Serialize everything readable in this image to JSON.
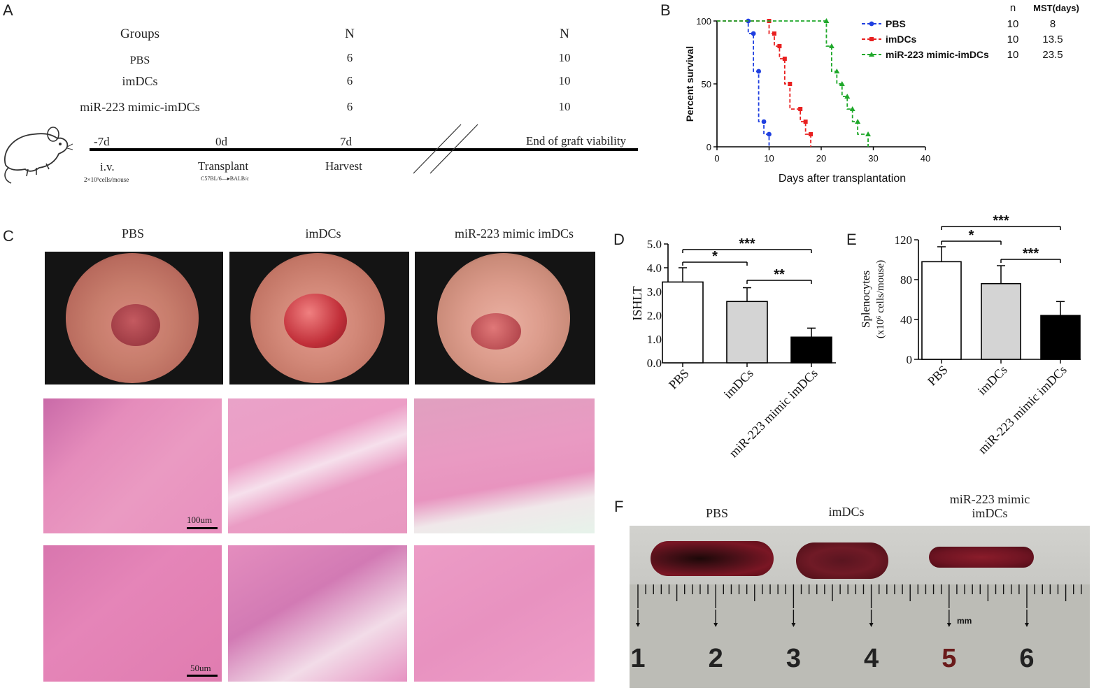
{
  "panel_labels": {
    "a": "A",
    "b": "B",
    "c": "C",
    "d": "D",
    "e": "E",
    "f": "F"
  },
  "panel_a": {
    "headers": [
      "Groups",
      "N",
      "N"
    ],
    "rows": [
      {
        "group": "PBS",
        "n1": "6",
        "n2": "10"
      },
      {
        "group": "imDCs",
        "n1": "6",
        "n2": "10"
      },
      {
        "group": "miR-223 mimic-imDCs",
        "n1": "6",
        "n2": "10"
      }
    ],
    "timeline": {
      "points": [
        "-7d",
        "0d",
        "7d",
        "End of graft viability"
      ],
      "events": [
        "i.v.",
        "Transplant",
        "Harvest"
      ],
      "iv_note": "2×10⁵cells/mouse",
      "transplant_note_from": "C57BL/6",
      "transplant_note_to": "BALB/c"
    },
    "icons": [
      "mouse-icon"
    ]
  },
  "panel_c": {
    "column_titles": [
      "PBS",
      "imDCs",
      "miR-223 mimic imDCs"
    ],
    "scale_bar_100": "100um",
    "scale_bar_50": "50um"
  },
  "panel_f": {
    "labels": [
      "PBS",
      "imDCs",
      "miR-223 mimic",
      "imDCs"
    ],
    "ruler_numbers": [
      "1",
      "2",
      "3",
      "4",
      "5",
      "6"
    ],
    "ruler_unit": "mm"
  },
  "chart_data": [
    {
      "id": "B",
      "type": "line",
      "ylabel": "Percent survival",
      "xlabel": "Days after transplantation",
      "xlim": [
        0,
        40
      ],
      "ylim": [
        0,
        100
      ],
      "x_ticks": [
        "0",
        "10",
        "20",
        "30",
        "40"
      ],
      "y_ticks": [
        "0",
        "50",
        "100"
      ],
      "step": true,
      "legend_position": "top-right",
      "legend_col_headers": [
        "n",
        "MST(days)"
      ],
      "series": [
        {
          "name": "PBS",
          "color": "#1f3fe0",
          "n": "10",
          "mst": "8",
          "x": [
            0,
            6,
            7,
            8,
            9,
            10
          ],
          "y": [
            100,
            90,
            60,
            20,
            10,
            0
          ]
        },
        {
          "name": "imDCs",
          "color": "#e82020",
          "n": "10",
          "mst": "13.5",
          "x": [
            0,
            10,
            11,
            12,
            13,
            14,
            16,
            17,
            18
          ],
          "y": [
            100,
            90,
            80,
            70,
            50,
            30,
            20,
            10,
            0
          ]
        },
        {
          "name": "miR-223 mimic-imDCs",
          "color": "#1fa82a",
          "n": "10",
          "mst": "23.5",
          "x": [
            0,
            21,
            22,
            23,
            24,
            25,
            26,
            27,
            29
          ],
          "y": [
            100,
            80,
            60,
            50,
            40,
            30,
            20,
            10,
            0
          ]
        }
      ]
    },
    {
      "id": "D",
      "type": "bar",
      "ylabel": "ISHLT",
      "categories": [
        "PBS",
        "imDCs",
        "miR-223 mimic imDCs"
      ],
      "values": [
        3.4,
        2.58,
        1.08
      ],
      "errors": [
        0.6,
        0.58,
        0.38
      ],
      "fills": [
        "#ffffff",
        "#d4d4d4",
        "#000000"
      ],
      "ylim": [
        0,
        5
      ],
      "y_ticks": [
        "0.0",
        "1.0",
        "2.0",
        "3.0",
        "4.0",
        "5.0"
      ],
      "significance": [
        {
          "from": 0,
          "to": 2,
          "label": "***"
        },
        {
          "from": 0,
          "to": 1,
          "label": "*"
        },
        {
          "from": 1,
          "to": 2,
          "label": "**"
        }
      ]
    },
    {
      "id": "E",
      "type": "bar",
      "ylabel_line1": "Splenocytes",
      "ylabel_line2": "(x10⁶ cells/mouse)",
      "categories": [
        "PBS",
        "imDCs",
        "miR-223 mimic imDCs"
      ],
      "values": [
        98,
        76,
        44
      ],
      "errors": [
        15,
        18,
        14
      ],
      "fills": [
        "#ffffff",
        "#d4d4d4",
        "#000000"
      ],
      "ylim": [
        0,
        120
      ],
      "y_ticks": [
        "0",
        "40",
        "80",
        "120"
      ],
      "significance": [
        {
          "from": 0,
          "to": 2,
          "label": "***"
        },
        {
          "from": 0,
          "to": 1,
          "label": "*"
        },
        {
          "from": 1,
          "to": 2,
          "label": "***"
        }
      ]
    }
  ]
}
